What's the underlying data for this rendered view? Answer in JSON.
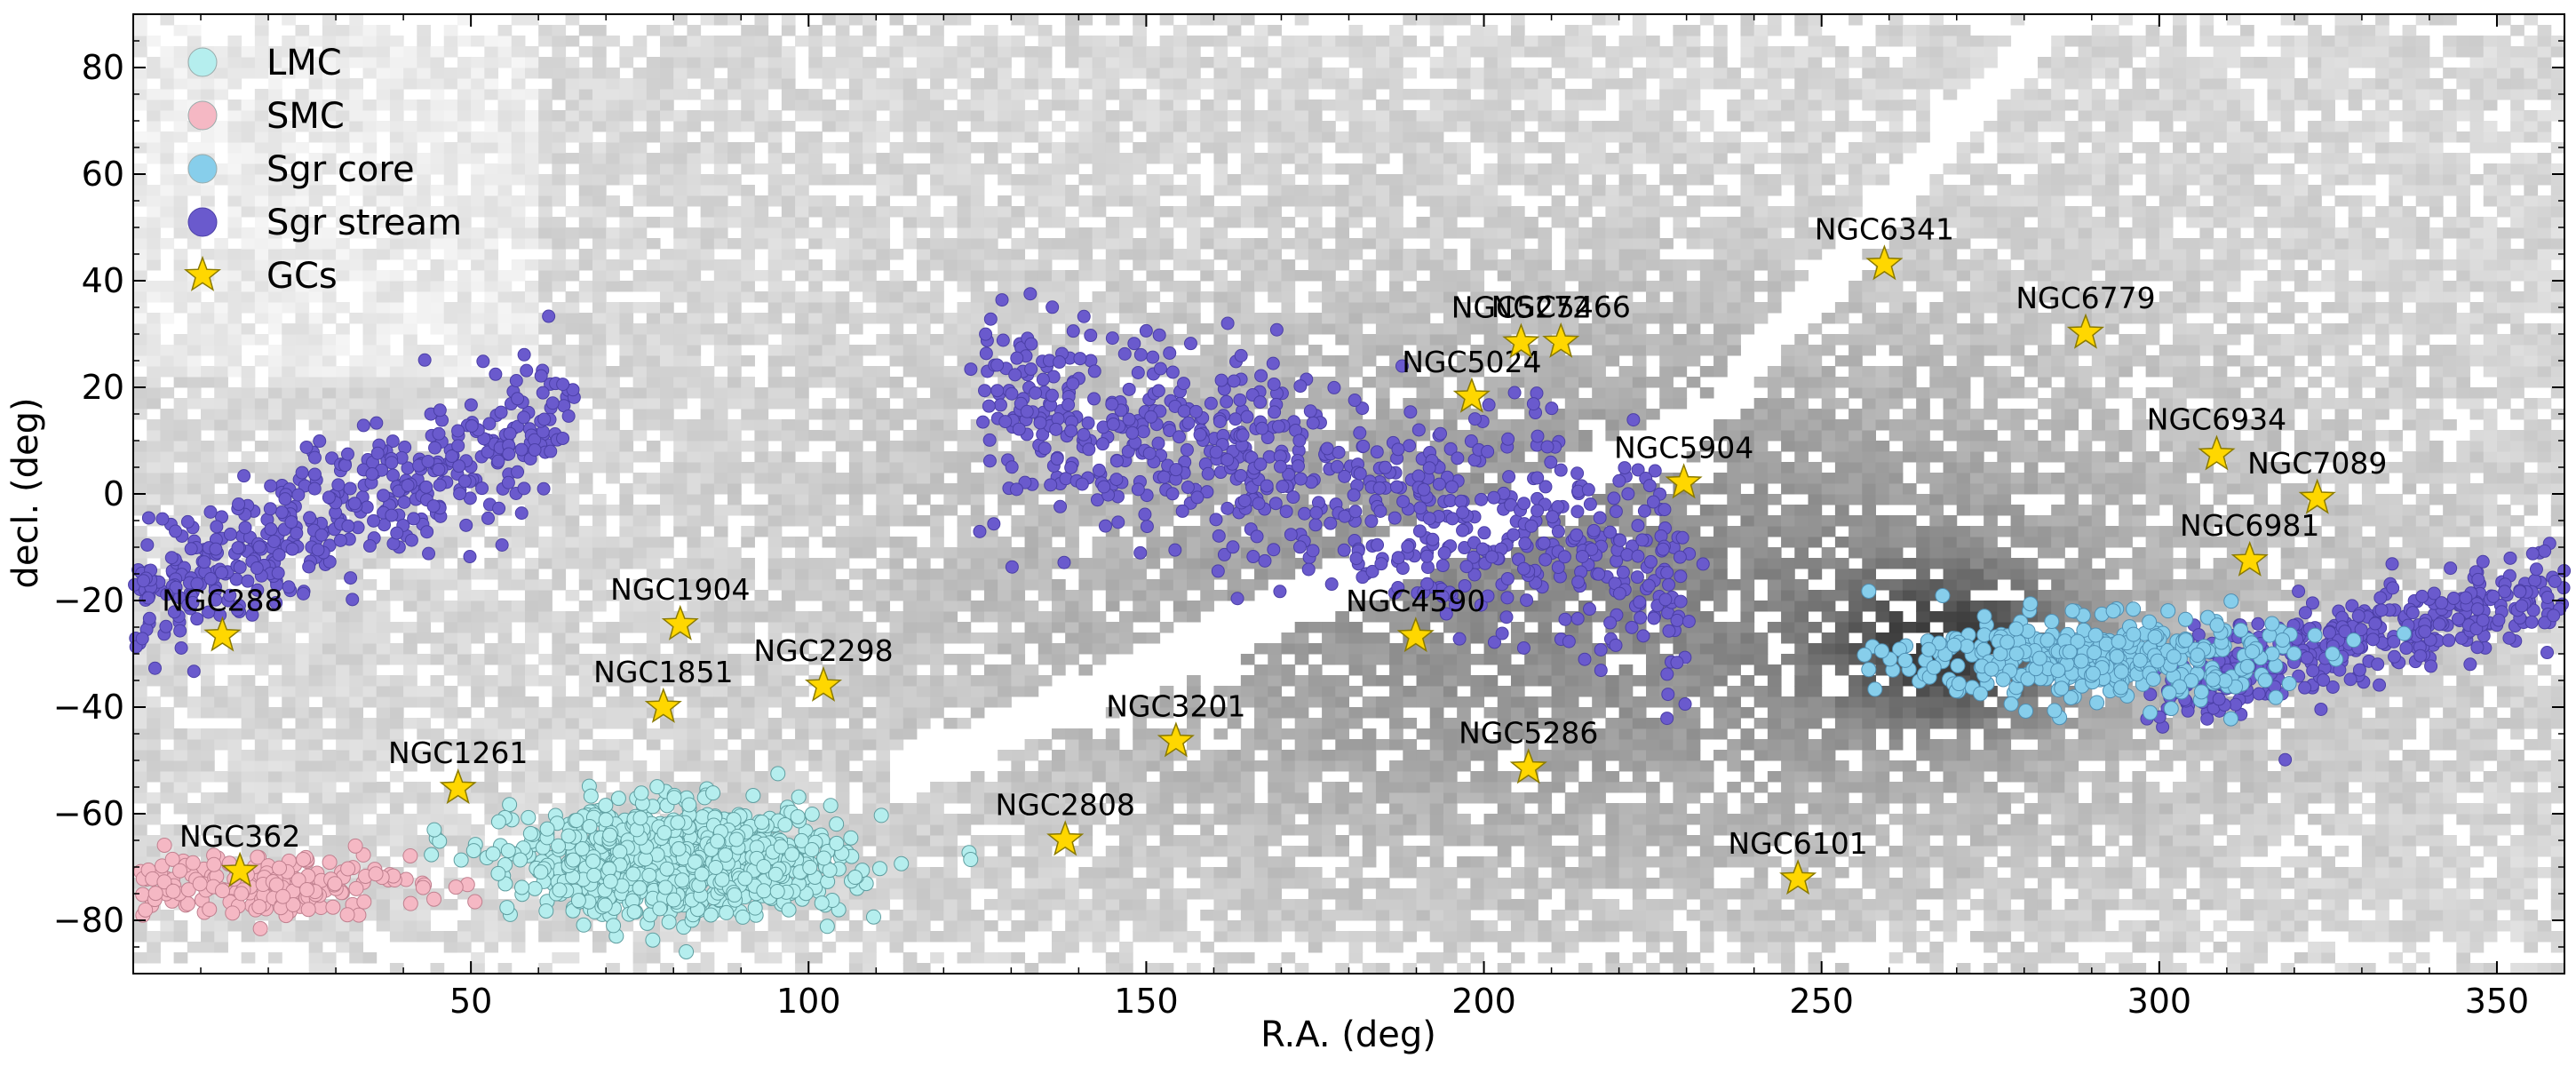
{
  "chart_data": {
    "type": "scatter",
    "xlabel": "R.A. (deg)",
    "ylabel": "decl. (deg)",
    "xlim": [
      0,
      360
    ],
    "ylim": [
      -90,
      90
    ],
    "x_ticks": [
      50,
      100,
      150,
      200,
      250,
      300,
      350
    ],
    "y_ticks": [
      -80,
      -60,
      -40,
      -20,
      0,
      20,
      40,
      60,
      80
    ],
    "legend": {
      "position": "top-left",
      "entries": [
        {
          "label": "LMC",
          "color": "#b5eeee",
          "marker": "circle"
        },
        {
          "label": "SMC",
          "color": "#f5b8c4",
          "marker": "circle"
        },
        {
          "label": "Sgr core",
          "color": "#87ceeb",
          "marker": "circle"
        },
        {
          "label": "Sgr stream",
          "color": "#6a5acd",
          "marker": "circle"
        },
        {
          "label": "GCs",
          "color": "#ffd700",
          "marker": "star"
        }
      ]
    },
    "background": "grayscale 2D density histogram of stars",
    "groups": {
      "LMC": {
        "color": "#b5eeee",
        "edge": "#5f9ea0",
        "center": [
          81,
          -69
        ],
        "spread_x": 12,
        "spread_y": 5
      },
      "SMC": {
        "color": "#f5b8c4",
        "edge": "#c0808f",
        "center": [
          18,
          -73
        ],
        "spread_x": 12,
        "spread_y": 3
      },
      "Sgr core": {
        "color": "#87ceeb",
        "edge": "#4f8fb3",
        "center": [
          290,
          -31
        ],
        "spread_x": 14,
        "spread_y": 4
      },
      "Sgr stream": {
        "color": "#6a5acd",
        "edge": "#4b3fa6",
        "segments": [
          {
            "x": [
              0,
              65
            ],
            "y": [
              -20,
              15
            ],
            "spread": 6
          },
          {
            "x": [
              125,
              230
            ],
            "y": [
              18,
              -15
            ],
            "spread": 10
          },
          {
            "x": [
              300,
              360
            ],
            "y": [
              -36,
              -18
            ],
            "spread": 4
          }
        ]
      }
    },
    "gcs": [
      {
        "name": "NGC288",
        "ra": 13.2,
        "dec": -26.6
      },
      {
        "name": "NGC362",
        "ra": 15.8,
        "dec": -70.8
      },
      {
        "name": "NGC1261",
        "ra": 48.1,
        "dec": -55.2
      },
      {
        "name": "NGC1851",
        "ra": 78.5,
        "dec": -40.0
      },
      {
        "name": "NGC1904",
        "ra": 81.0,
        "dec": -24.5
      },
      {
        "name": "NGC2298",
        "ra": 102.2,
        "dec": -36.0
      },
      {
        "name": "NGC2808",
        "ra": 138.0,
        "dec": -64.9
      },
      {
        "name": "NGC3201",
        "ra": 154.4,
        "dec": -46.4
      },
      {
        "name": "NGC4590",
        "ra": 189.9,
        "dec": -26.7
      },
      {
        "name": "NGC5024",
        "ra": 198.2,
        "dec": 18.2
      },
      {
        "name": "NGC5272",
        "ra": 205.5,
        "dec": 28.4
      },
      {
        "name": "NGC5466",
        "ra": 211.4,
        "dec": 28.5
      },
      {
        "name": "NGC5286",
        "ra": 206.6,
        "dec": -51.4
      },
      {
        "name": "NGC5904",
        "ra": 229.6,
        "dec": 2.1
      },
      {
        "name": "NGC6101",
        "ra": 246.5,
        "dec": -72.2
      },
      {
        "name": "NGC6341",
        "ra": 259.3,
        "dec": 43.1
      },
      {
        "name": "NGC6779",
        "ra": 289.1,
        "dec": 30.2
      },
      {
        "name": "NGC6934",
        "ra": 308.5,
        "dec": 7.4
      },
      {
        "name": "NGC6981",
        "ra": 313.4,
        "dec": -12.5
      },
      {
        "name": "NGC7089",
        "ra": 323.4,
        "dec": -0.8
      }
    ]
  }
}
